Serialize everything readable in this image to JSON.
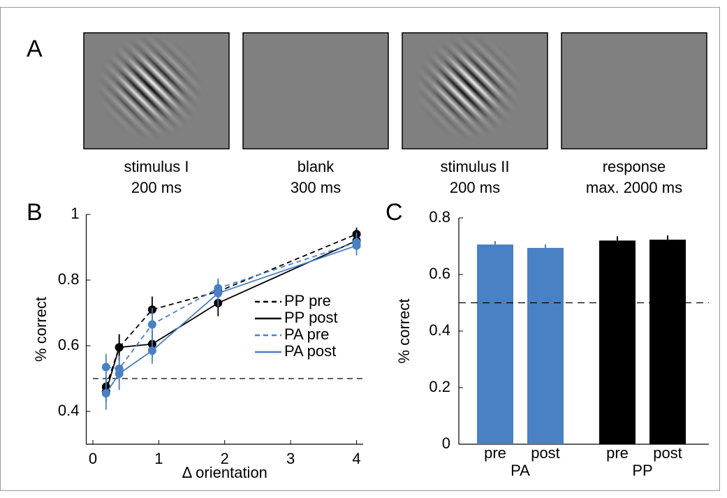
{
  "panel_a": {
    "label": "A",
    "frames": [
      {
        "line1": "stimulus I",
        "line2": "200 ms",
        "grating": true
      },
      {
        "line1": "blank",
        "line2": "300 ms",
        "grating": false
      },
      {
        "line1": "stimulus II",
        "line2": "200 ms",
        "grating": true
      },
      {
        "line1": "response",
        "line2": "max. 2000 ms",
        "grating": false
      }
    ]
  },
  "chart_data": [
    {
      "type": "line",
      "panel": "B",
      "x_label": "Δ orientation",
      "y_label": "% correct",
      "x": [
        0.2,
        0.4,
        0.9,
        1.9,
        4
      ],
      "xlim": [
        -0.1,
        4.1
      ],
      "xticks": [
        0,
        1,
        2,
        3,
        4
      ],
      "ylim": [
        0.3,
        1
      ],
      "yticks": [
        0.4,
        0.6,
        0.8,
        1
      ],
      "hline": 0.5,
      "legend": "right",
      "series": [
        {
          "name": "PP pre",
          "color": "#000000",
          "dashed": true,
          "values": [
            0.475,
            0.595,
            0.71,
            0.765,
            0.94
          ],
          "errors": [
            0.03,
            0.04,
            0.04,
            0.03,
            0.02
          ]
        },
        {
          "name": "PP post",
          "color": "#000000",
          "dashed": false,
          "values": [
            0.46,
            0.595,
            0.605,
            0.73,
            0.92
          ],
          "errors": [
            0.03,
            0.04,
            0.04,
            0.04,
            0.02
          ]
        },
        {
          "name": "PA pre",
          "color": "#4a80c4",
          "dashed": true,
          "values": [
            0.535,
            0.53,
            0.665,
            0.775,
            0.915
          ],
          "errors": [
            0.04,
            0.04,
            0.05,
            0.03,
            0.03
          ]
        },
        {
          "name": "PA post",
          "color": "#4a80c4",
          "dashed": false,
          "values": [
            0.455,
            0.515,
            0.585,
            0.76,
            0.905
          ],
          "errors": [
            0.05,
            0.05,
            0.04,
            0.04,
            0.03
          ]
        }
      ]
    },
    {
      "type": "bar",
      "panel": "C",
      "y_label": "% correct",
      "categories": [
        "pre",
        "post"
      ],
      "ylim": [
        0,
        0.8
      ],
      "yticks": [
        0,
        0.2,
        0.4,
        0.6,
        0.8
      ],
      "hline": 0.5,
      "series": [
        {
          "name": "PA",
          "color": "#4a80c4",
          "values": [
            0.706,
            0.694
          ],
          "errors": [
            0.012,
            0.012
          ]
        },
        {
          "name": "PP",
          "color": "#000000",
          "values": [
            0.72,
            0.723
          ],
          "errors": [
            0.015,
            0.015
          ]
        }
      ]
    }
  ]
}
